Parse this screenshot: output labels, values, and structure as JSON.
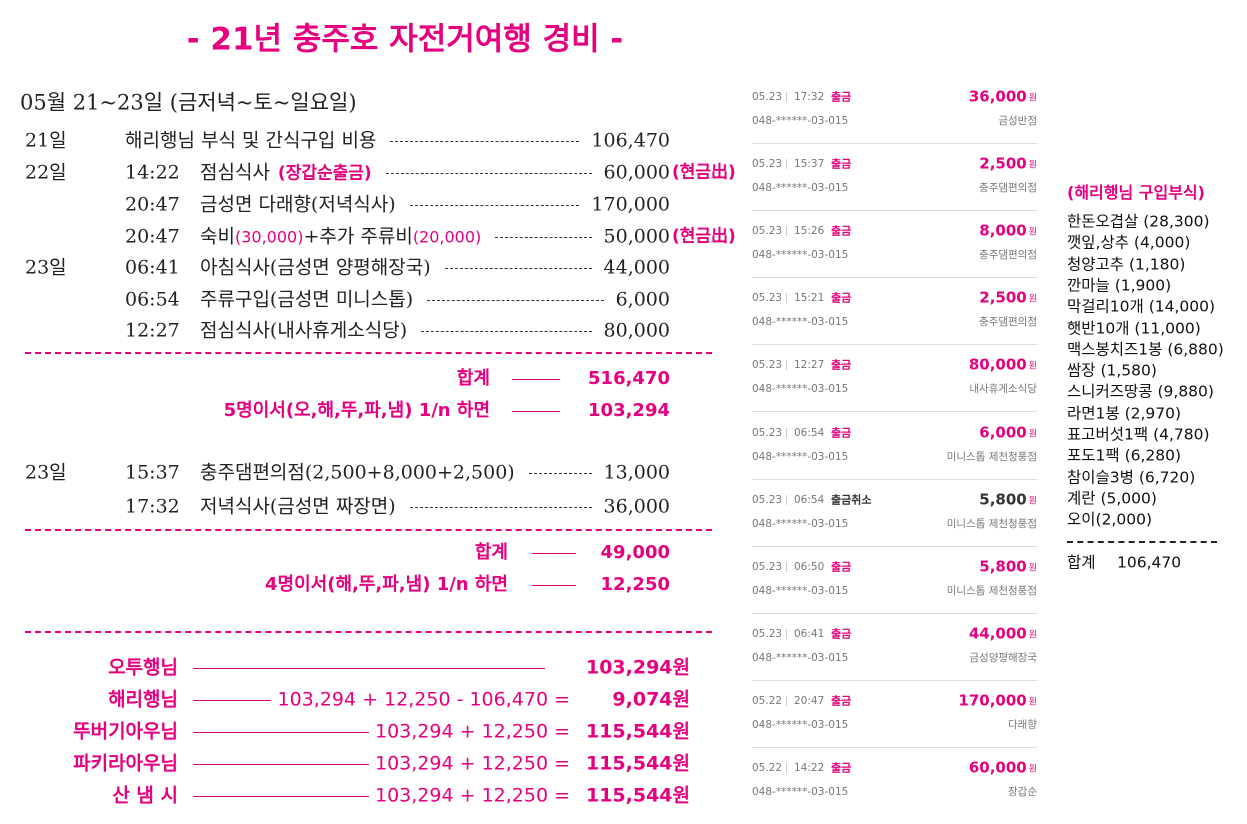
{
  "title": "- 21년 충주호 자전거여행 경비 -",
  "subtitle": "05월 21~23일 (금저녁~토~일요일)",
  "section1": {
    "rows": [
      {
        "day": "21일",
        "desc": [
          {
            "text": "해리행님 부식 및 간식구입 비용"
          }
        ],
        "amount": "106,470"
      },
      {
        "day": "22일",
        "time": "14:22",
        "desc": [
          {
            "text": "점심식사"
          },
          {
            "text": "(장갑순출금)",
            "pink": true,
            "bold": true
          }
        ],
        "amount": "60,000",
        "note": "(현금出)"
      },
      {
        "time": "20:47",
        "desc": [
          {
            "text": "금성면 다래향(저녁식사)"
          }
        ],
        "amount": "170,000"
      },
      {
        "time": "20:47",
        "desc": [
          {
            "text": "숙비"
          },
          {
            "text": "(30,000)",
            "pink": true
          },
          {
            "text": "+추가 주류비"
          },
          {
            "text": "(20,000)",
            "pink": true
          }
        ],
        "amount": "50,000",
        "note": "(현금出)"
      },
      {
        "day": "23일",
        "time": "06:41",
        "desc": [
          {
            "text": "아침식사(금성면 양평해장국)"
          }
        ],
        "amount": "44,000"
      },
      {
        "time": "06:54",
        "desc": [
          {
            "text": "주류구입(금성면 미니스톱)"
          }
        ],
        "amount": "6,000"
      },
      {
        "time": "12:27",
        "desc": [
          {
            "text": "점심식사(내사휴게소식당)"
          }
        ],
        "amount": "80,000"
      }
    ],
    "totals": [
      {
        "label": "합계",
        "amount": "516,470"
      },
      {
        "label": "5명이서(오,해,뚜,파,냄) 1/n 하면",
        "amount": "103,294"
      }
    ]
  },
  "section2": {
    "rows": [
      {
        "day": "23일",
        "time": "15:37",
        "desc": [
          {
            "text": "충주댐편의점(2,500+8,000+2,500)"
          }
        ],
        "amount": "13,000"
      },
      {
        "time": "17:32",
        "desc": [
          {
            "text": "저녁식사(금성면 짜장면)"
          }
        ],
        "amount": "36,000"
      }
    ],
    "totals": [
      {
        "label": "합계",
        "amount": "49,000"
      },
      {
        "label": "4명이서(해,뚜,파,냄) 1/n 하면",
        "amount": "12,250"
      }
    ]
  },
  "settlement": [
    {
      "name": "오투행님",
      "amount": "103,294원"
    },
    {
      "name": "해리행님",
      "formula": "103,294 + 12,250 - 106,470 =",
      "amount": "9,074원"
    },
    {
      "name": "뚜버기아우님",
      "formula": "103,294 + 12,250 =",
      "amount": "115,544원"
    },
    {
      "name": "파키라아우님",
      "formula": "103,294 + 12,250 =",
      "amount": "115,544원"
    },
    {
      "name": "산 냄 시",
      "formula": "103,294 + 12,250 =",
      "amount": "115,544원"
    }
  ],
  "bank": [
    {
      "date": "05.23",
      "time": "17:32",
      "type": "출금",
      "color": "#e4007f",
      "amount": "36,000",
      "unit": "원",
      "account": "048-******-03-015",
      "place": "금성반점"
    },
    {
      "date": "05.23",
      "time": "15:37",
      "type": "출금",
      "color": "#e4007f",
      "amount": "2,500",
      "unit": "원",
      "account": "048-******-03-015",
      "place": "충주댐편의점"
    },
    {
      "date": "05.23",
      "time": "15:26",
      "type": "출금",
      "color": "#e4007f",
      "amount": "8,000",
      "unit": "원",
      "account": "048-******-03-015",
      "place": "충주댐편의점"
    },
    {
      "date": "05.23",
      "time": "15:21",
      "type": "출금",
      "color": "#e4007f",
      "amount": "2,500",
      "unit": "원",
      "account": "048-******-03-015",
      "place": "충주댐편의점"
    },
    {
      "date": "05.23",
      "time": "12:27",
      "type": "출금",
      "color": "#e4007f",
      "amount": "80,000",
      "unit": "원",
      "account": "048-******-03-015",
      "place": "내사휴게소식당"
    },
    {
      "date": "05.23",
      "time": "06:54",
      "type": "출금",
      "color": "#e4007f",
      "amount": "6,000",
      "unit": "원",
      "account": "048-******-03-015",
      "place": "미니스톱 제천청풍점"
    },
    {
      "date": "05.23",
      "time": "06:54",
      "type": "출금취소",
      "color": "#333333",
      "amount": "5,800",
      "unit": "원",
      "account": "048-******-03-015",
      "place": "미니스톱 제천청풍점"
    },
    {
      "date": "05.23",
      "time": "06:50",
      "type": "출금",
      "color": "#e4007f",
      "amount": "5,800",
      "unit": "원",
      "account": "048-******-03-015",
      "place": "미니스톱 제천청풍점"
    },
    {
      "date": "05.23",
      "time": "06:41",
      "type": "출금",
      "color": "#e4007f",
      "amount": "44,000",
      "unit": "원",
      "account": "048-******-03-015",
      "place": "금성양평해장국"
    },
    {
      "date": "05.22",
      "time": "20:47",
      "type": "출금",
      "color": "#e4007f",
      "amount": "170,000",
      "unit": "원",
      "account": "048-******-03-015",
      "place": "다래향"
    },
    {
      "date": "05.22",
      "time": "14:22",
      "type": "출금",
      "color": "#e4007f",
      "amount": "60,000",
      "unit": "원",
      "account": "048-******-03-015",
      "place": "장갑순"
    }
  ],
  "groceries": {
    "title": "(해리행님 구입부식)",
    "items": [
      "한돈오겹살 (28,300)",
      "깻잎,상추 (4,000)",
      "청양고추 (1,180)",
      "깐마늘 (1,900)",
      "막걸리10개 (14,000)",
      "햇반10개 (11,000)",
      "맥스봉치즈1봉 (6,880)",
      "쌈장 (1,580)",
      "스니커즈땅콩 (9,880)",
      "라면1봉 (2,970)",
      "표고버섯1팩 (4,780)",
      "포도1팩 (6,280)",
      "참이슬3병 (6,720)",
      "계란 (5,000)",
      "오이(2,000)"
    ],
    "total_label": "합계",
    "total": "106,470"
  }
}
